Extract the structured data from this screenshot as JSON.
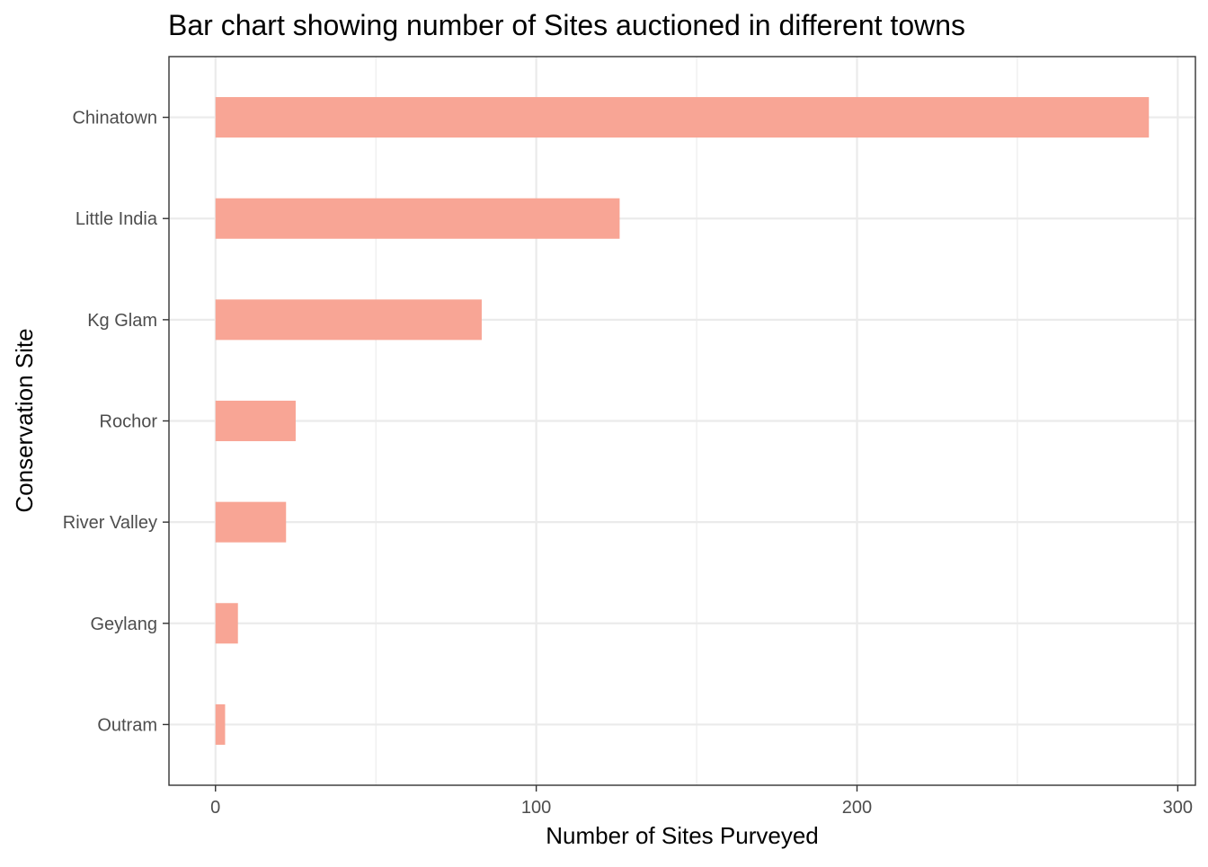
{
  "chart_data": {
    "type": "bar",
    "orientation": "horizontal",
    "title": "Bar chart showing number of Sites auctioned in different towns",
    "xlabel": "Number of Sites Purveyed",
    "ylabel": "Conservation Site",
    "categories": [
      "Chinatown",
      "Little India",
      "Kg Glam",
      "Rochor",
      "River Valley",
      "Geylang",
      "Outram"
    ],
    "values": [
      291,
      126,
      83,
      25,
      22,
      7,
      3
    ],
    "xlim": [
      -14.5,
      305.5
    ],
    "xticks": [
      0,
      100,
      200,
      300
    ],
    "xtick_labels": [
      "0",
      "100",
      "200",
      "300"
    ],
    "grid": true,
    "bar_color": "#f8a595",
    "theme": "bw"
  }
}
